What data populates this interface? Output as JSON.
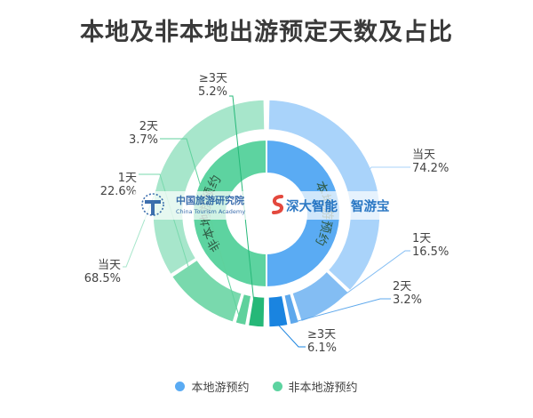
{
  "chart_data": {
    "type": "pie",
    "title": "本地及非本地出游预定天数及占比",
    "legend_position": "bottom",
    "series": [
      {
        "name": "本地游预约",
        "ring": "inner",
        "ring_label": "本地游预约",
        "slices": [
          {
            "category": "当天",
            "percent": "74.2%",
            "value": 74.2,
            "color": "#5aabf3"
          },
          {
            "category": "1天",
            "percent": "16.5%",
            "value": 16.5,
            "color": "#4d9ee8"
          },
          {
            "category": "2天",
            "percent": "3.2%",
            "value": 3.2,
            "color": "#3d92e4"
          },
          {
            "category": "≥3天",
            "percent": "6.1%",
            "value": 6.1,
            "color": "#1881df"
          }
        ]
      },
      {
        "name": "非本地游预约",
        "ring": "inner",
        "ring_label": "非本地游预约",
        "slices": [
          {
            "category": "当天",
            "percent": "68.5%",
            "value": 68.5,
            "color": "#6bd8a7"
          },
          {
            "category": "1天",
            "percent": "22.6%",
            "value": 22.6,
            "color": "#5bd29f"
          },
          {
            "category": "2天",
            "percent": "3.7%",
            "value": 3.7,
            "color": "#40c489"
          },
          {
            "category": "≥3天",
            "percent": "5.2%",
            "value": 5.2,
            "color": "#2db87c"
          }
        ]
      }
    ],
    "outer_colors": {
      "本地游预约": [
        "#a9d3fa",
        "#83bdf3",
        "#5ea8ec",
        "#1a84e0"
      ],
      "非本地游预约": [
        "#a7e6cb",
        "#79d9ad",
        "#5fd19c",
        "#26b878"
      ]
    },
    "inner_colors": {
      "本地游预约": "#5aabf3",
      "非本地游预约": "#5dd3a0"
    },
    "legend": [
      {
        "label": "本地游预约",
        "color": "#5aabf3"
      },
      {
        "label": "非本地游预约",
        "color": "#5dd3a0"
      }
    ],
    "watermark": {
      "org_cn": "中国旅游研究院",
      "org_en": "China Tourism Academy",
      "brand_a": "深大智能",
      "brand_b": "智游宝"
    }
  }
}
